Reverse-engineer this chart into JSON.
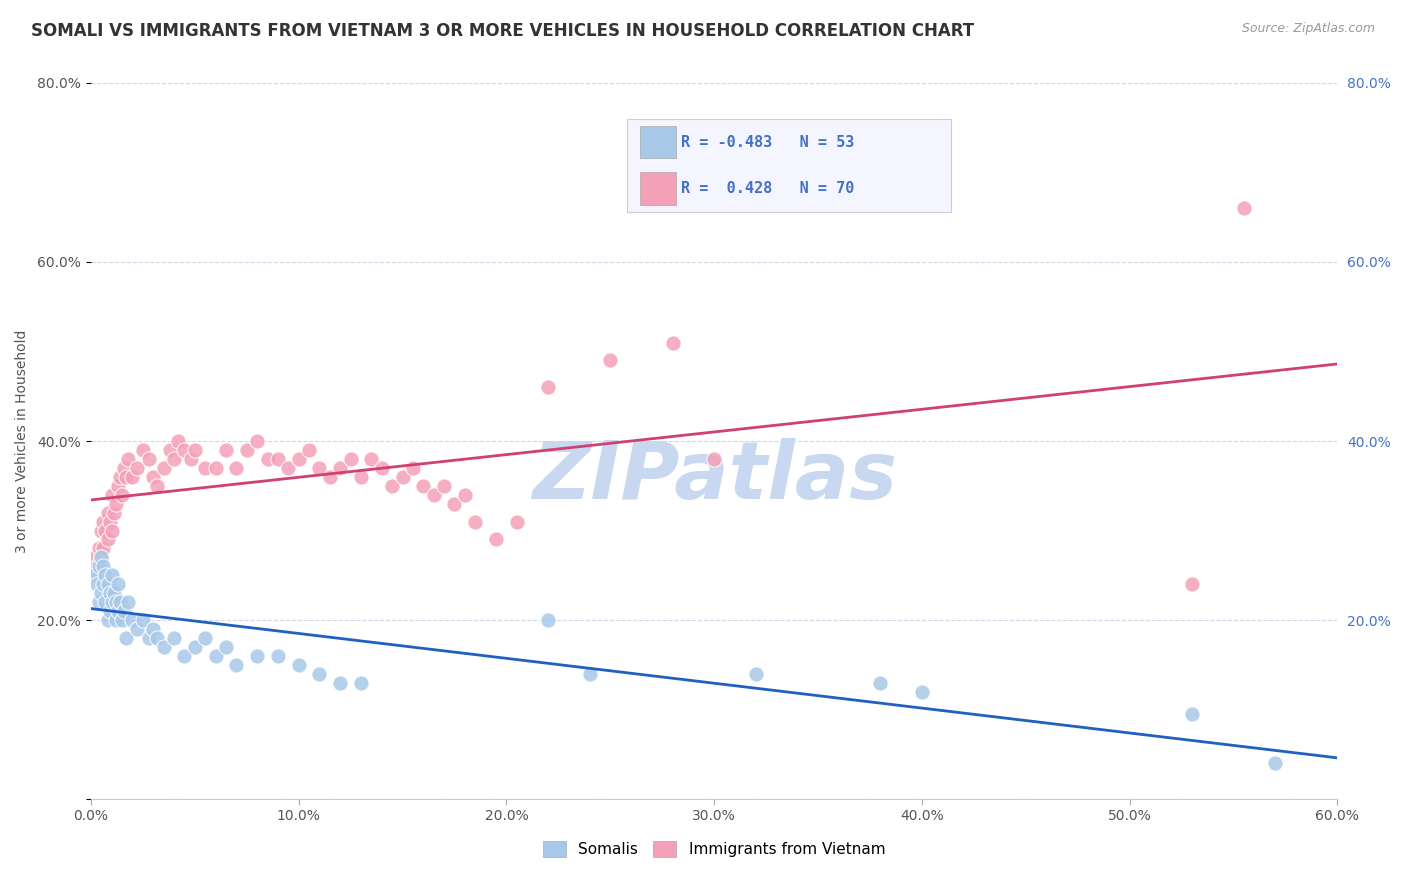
{
  "title": "SOMALI VS IMMIGRANTS FROM VIETNAM 3 OR MORE VEHICLES IN HOUSEHOLD CORRELATION CHART",
  "source": "Source: ZipAtlas.com",
  "ylabel": "3 or more Vehicles in Household",
  "xlim": [
    0.0,
    0.6
  ],
  "ylim": [
    0.0,
    0.8
  ],
  "xtick_vals": [
    0.0,
    0.1,
    0.2,
    0.3,
    0.4,
    0.5,
    0.6
  ],
  "ytick_vals_left": [
    0.0,
    0.2,
    0.4,
    0.6,
    0.8
  ],
  "ytick_vals_right": [
    0.2,
    0.4,
    0.6,
    0.8
  ],
  "somali_color": "#a8c8e8",
  "vietnam_color": "#f4a0b8",
  "somali_line_color": "#2060c0",
  "vietnam_line_color": "#d04070",
  "watermark_color": "#c8d8f0",
  "somali_R": -0.483,
  "somali_N": 53,
  "vietnam_R": 0.428,
  "vietnam_N": 70,
  "somali_x": [
    0.002,
    0.003,
    0.004,
    0.004,
    0.005,
    0.005,
    0.006,
    0.006,
    0.007,
    0.007,
    0.008,
    0.008,
    0.009,
    0.009,
    0.01,
    0.01,
    0.011,
    0.012,
    0.012,
    0.013,
    0.013,
    0.014,
    0.015,
    0.016,
    0.017,
    0.018,
    0.02,
    0.022,
    0.025,
    0.028,
    0.03,
    0.032,
    0.035,
    0.04,
    0.045,
    0.05,
    0.055,
    0.06,
    0.065,
    0.07,
    0.08,
    0.09,
    0.1,
    0.11,
    0.12,
    0.13,
    0.22,
    0.24,
    0.32,
    0.38,
    0.4,
    0.53,
    0.57
  ],
  "somali_y": [
    0.25,
    0.24,
    0.26,
    0.22,
    0.23,
    0.27,
    0.24,
    0.26,
    0.22,
    0.25,
    0.2,
    0.24,
    0.21,
    0.23,
    0.22,
    0.25,
    0.23,
    0.2,
    0.22,
    0.21,
    0.24,
    0.22,
    0.2,
    0.21,
    0.18,
    0.22,
    0.2,
    0.19,
    0.2,
    0.18,
    0.19,
    0.18,
    0.17,
    0.18,
    0.16,
    0.17,
    0.18,
    0.16,
    0.17,
    0.15,
    0.16,
    0.16,
    0.15,
    0.14,
    0.13,
    0.13,
    0.2,
    0.14,
    0.14,
    0.13,
    0.12,
    0.095,
    0.04
  ],
  "vietnam_x": [
    0.002,
    0.003,
    0.004,
    0.004,
    0.005,
    0.005,
    0.006,
    0.006,
    0.007,
    0.008,
    0.008,
    0.009,
    0.01,
    0.01,
    0.011,
    0.012,
    0.013,
    0.014,
    0.015,
    0.016,
    0.017,
    0.018,
    0.02,
    0.022,
    0.025,
    0.028,
    0.03,
    0.032,
    0.035,
    0.038,
    0.04,
    0.042,
    0.045,
    0.048,
    0.05,
    0.055,
    0.06,
    0.065,
    0.07,
    0.075,
    0.08,
    0.085,
    0.09,
    0.095,
    0.1,
    0.105,
    0.11,
    0.115,
    0.12,
    0.125,
    0.13,
    0.135,
    0.14,
    0.145,
    0.15,
    0.155,
    0.16,
    0.165,
    0.17,
    0.175,
    0.18,
    0.185,
    0.195,
    0.205,
    0.22,
    0.25,
    0.28,
    0.3,
    0.53,
    0.555
  ],
  "vietnam_y": [
    0.27,
    0.26,
    0.28,
    0.25,
    0.3,
    0.27,
    0.31,
    0.28,
    0.3,
    0.32,
    0.29,
    0.31,
    0.3,
    0.34,
    0.32,
    0.33,
    0.35,
    0.36,
    0.34,
    0.37,
    0.36,
    0.38,
    0.36,
    0.37,
    0.39,
    0.38,
    0.36,
    0.35,
    0.37,
    0.39,
    0.38,
    0.4,
    0.39,
    0.38,
    0.39,
    0.37,
    0.37,
    0.39,
    0.37,
    0.39,
    0.4,
    0.38,
    0.38,
    0.37,
    0.38,
    0.39,
    0.37,
    0.36,
    0.37,
    0.38,
    0.36,
    0.38,
    0.37,
    0.35,
    0.36,
    0.37,
    0.35,
    0.34,
    0.35,
    0.33,
    0.34,
    0.31,
    0.29,
    0.31,
    0.46,
    0.49,
    0.51,
    0.38,
    0.24,
    0.66
  ],
  "background_color": "#ffffff",
  "grid_color": "#d0d8e8",
  "title_fontsize": 12,
  "axis_fontsize": 10
}
